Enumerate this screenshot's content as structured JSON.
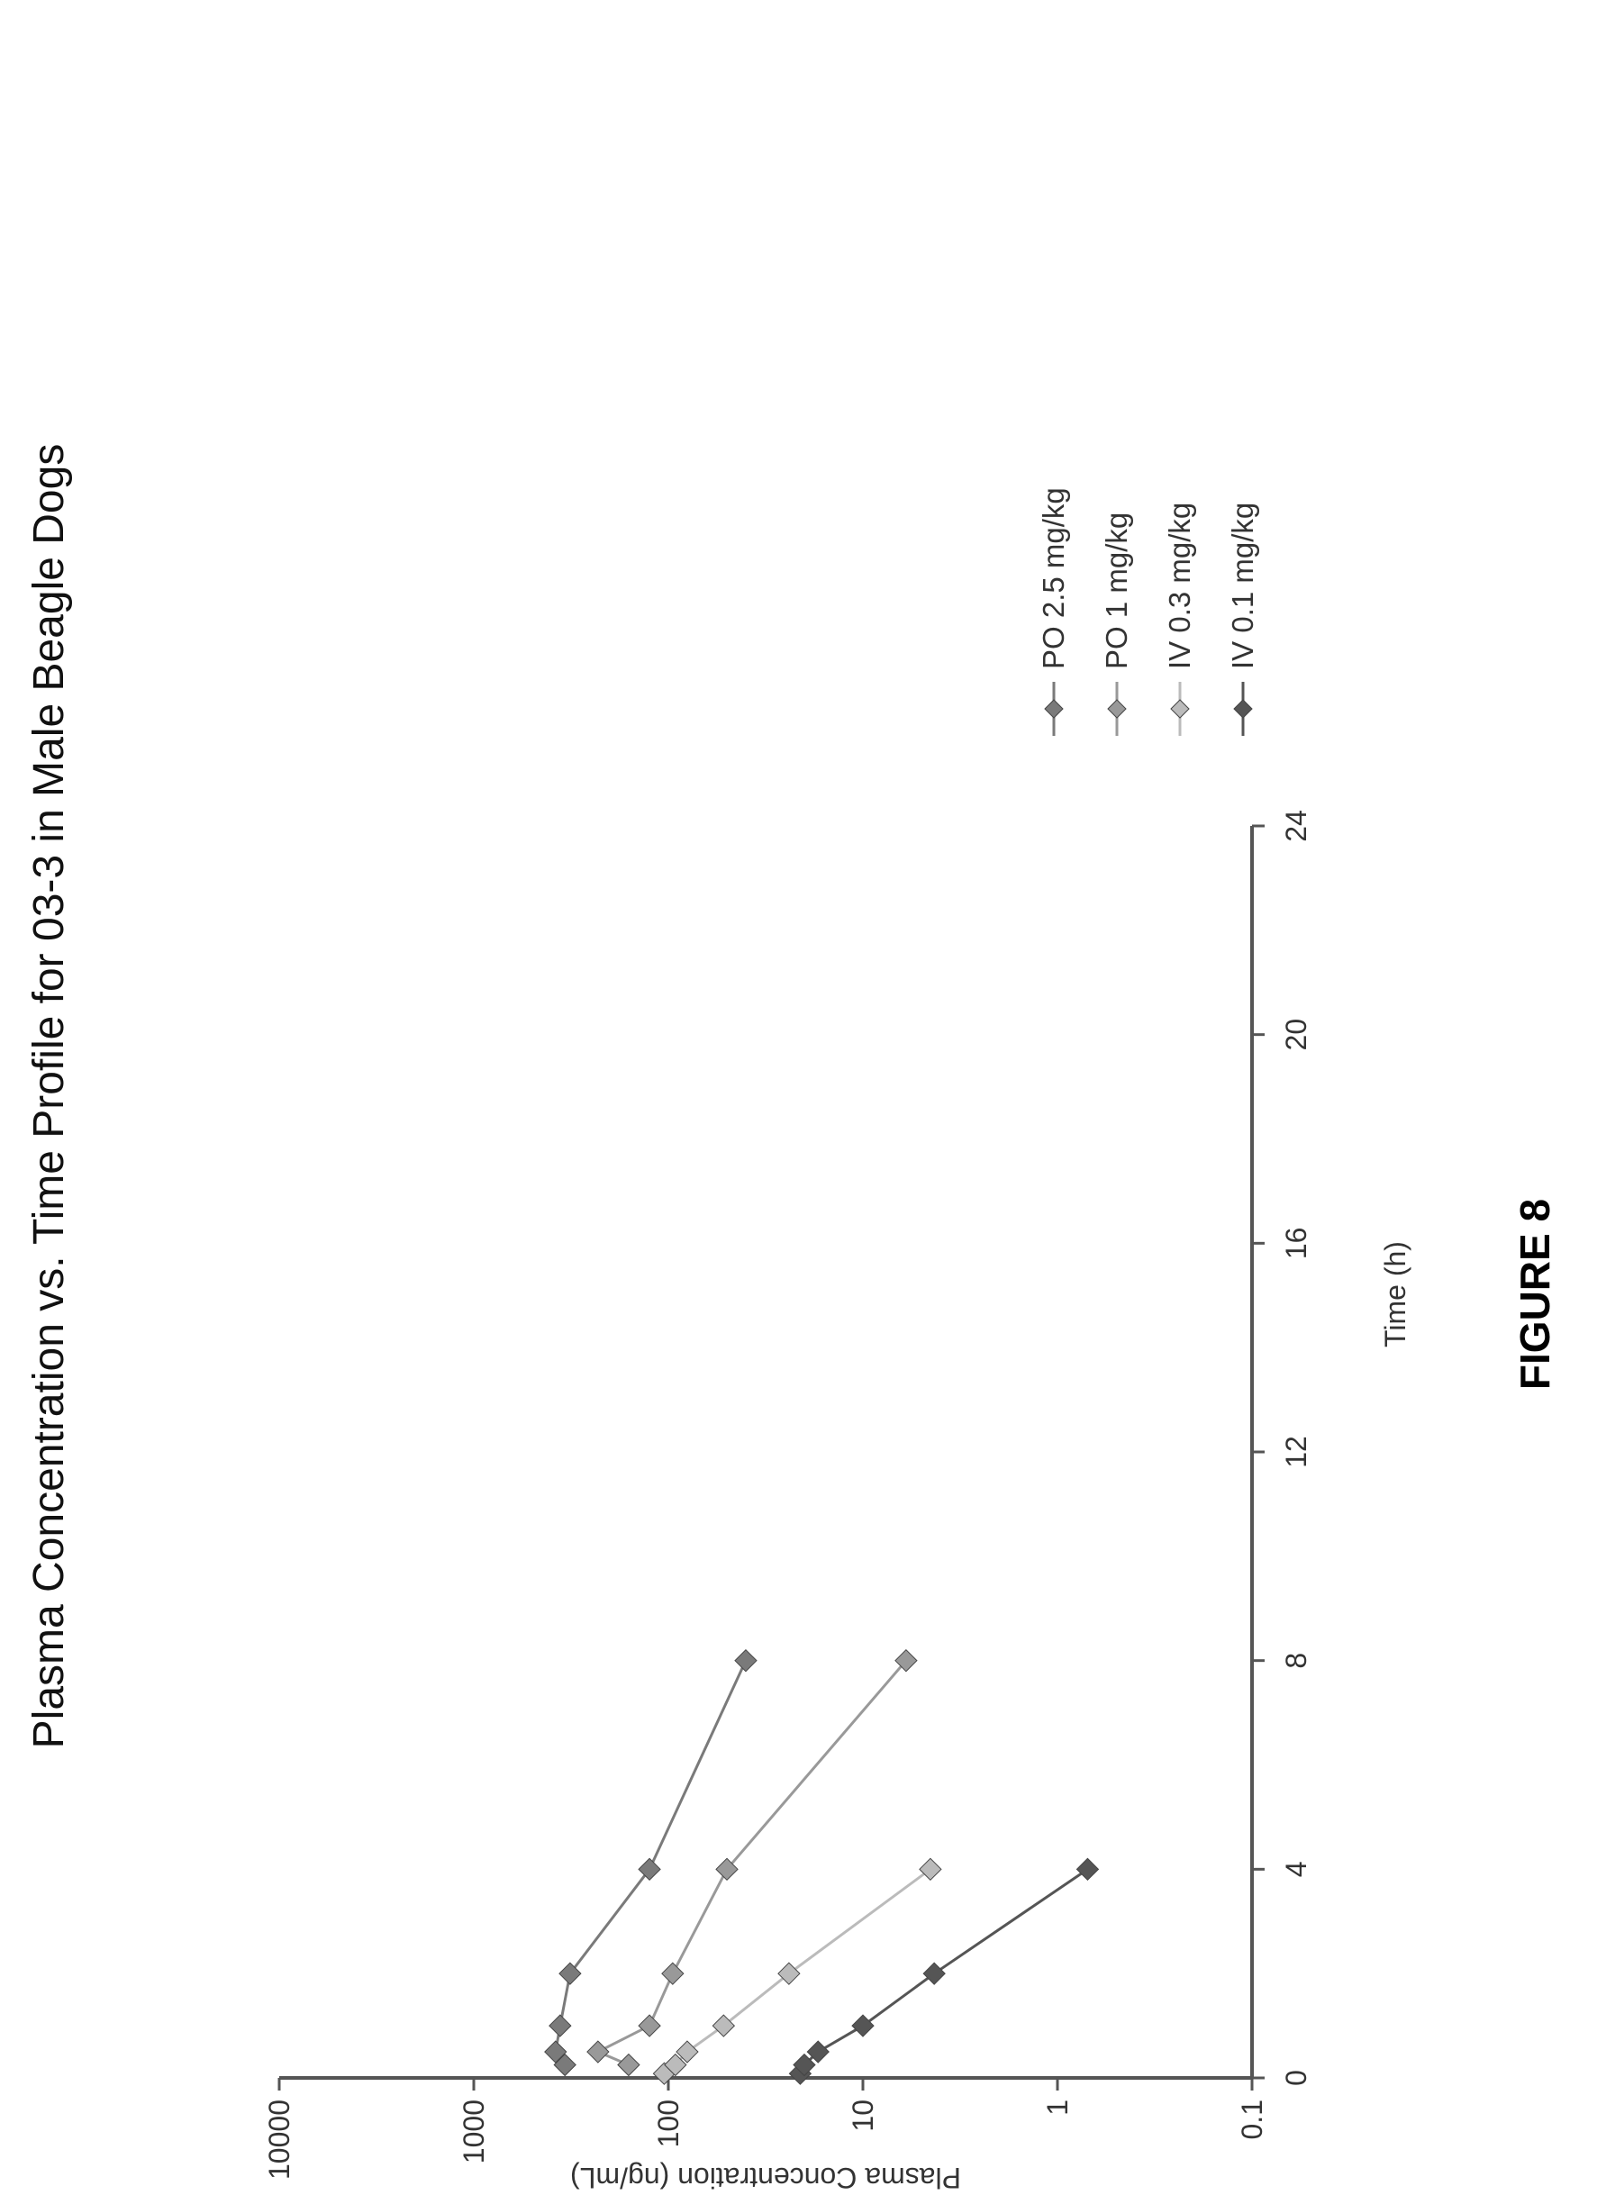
{
  "chart_data": {
    "type": "line",
    "title": "Plasma Concentration vs. Time Profile for 03-3 in Male Beagle Dogs",
    "xlabel": "Time (h)",
    "ylabel": "Plasma Concentration (ng/mL)",
    "xlim": [
      0,
      24
    ],
    "ylim": [
      0.1,
      10000
    ],
    "yscale": "log",
    "xticks": [
      "0",
      "4",
      "8",
      "12",
      "16",
      "20",
      "24"
    ],
    "yticks": [
      "0.1",
      "1",
      "10",
      "100",
      "1000",
      "10000"
    ],
    "legend_position": "right",
    "grid": false,
    "orientation": "rotated-90-clockwise",
    "series": [
      {
        "name": "IV 0.1 mg/kg",
        "color": "#555555",
        "marker": "diamond",
        "x": [
          0.083,
          0.25,
          0.5,
          1,
          2,
          4
        ],
        "y": [
          21,
          20,
          17,
          10,
          4.3,
          0.7
        ]
      },
      {
        "name": "IV 0.3 mg/kg",
        "color": "#bbbbbb",
        "marker": "diamond",
        "x": [
          0.083,
          0.25,
          0.5,
          1,
          2,
          4
        ],
        "y": [
          105,
          92,
          80,
          52,
          24,
          4.5
        ]
      },
      {
        "name": "PO 1 mg/kg",
        "color": "#999999",
        "marker": "diamond",
        "x": [
          0.25,
          0.5,
          1,
          2,
          4,
          8
        ],
        "y": [
          160,
          230,
          125,
          95,
          50,
          6
        ]
      },
      {
        "name": "PO 2.5 mg/kg",
        "color": "#7a7a7a",
        "marker": "diamond",
        "x": [
          0.25,
          0.5,
          1,
          2,
          4,
          8
        ],
        "y": [
          340,
          380,
          360,
          320,
          125,
          40
        ]
      }
    ]
  },
  "figure": {
    "caption": "FIGURE 8"
  }
}
